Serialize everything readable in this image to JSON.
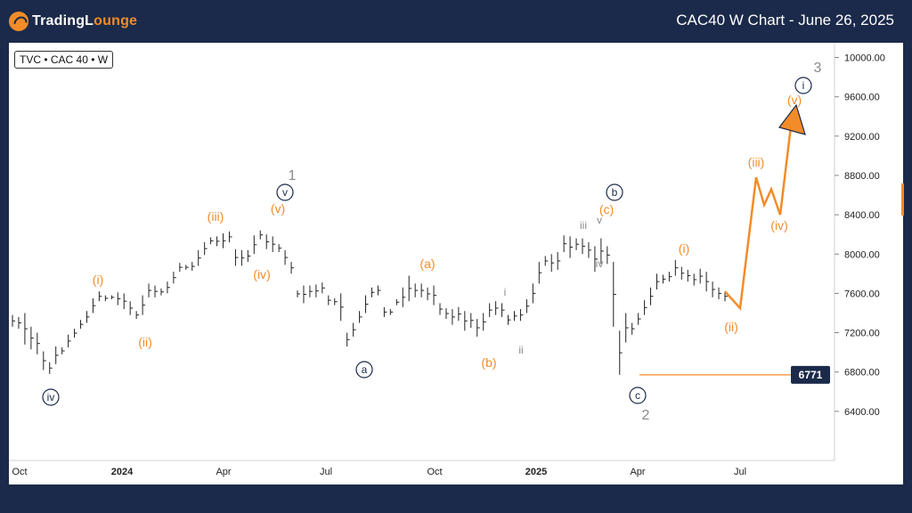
{
  "brand": {
    "name_part1": "TradingL",
    "name_part2": "ounge"
  },
  "header": {
    "title": "CAC40 W Chart - June 26, 2025"
  },
  "symbol_label": "TVC • CAC 40 • W",
  "colors": {
    "orange": "#f28c28",
    "navy": "#1b2a4a",
    "gray": "#8a8a8a",
    "bar": "#222222"
  },
  "chart_data": {
    "type": "bar",
    "title": "CAC40 W Chart - June 26, 2025",
    "ylim": [
      5900,
      10150
    ],
    "y_ticks": [
      "10000.00",
      "9600.00",
      "9200.00",
      "8800.00",
      "8400.00",
      "8000.00",
      "7600.00",
      "7200.00",
      "6800.00",
      "6400.00"
    ],
    "x_ticks": [
      "Oct",
      "2024",
      "Apr",
      "Jul",
      "Oct",
      "2025",
      "Apr",
      "Jul"
    ],
    "price_marker": {
      "label": "6771",
      "value": 6771
    },
    "price_bars_approx": [
      [
        7380,
        7260
      ],
      [
        7360,
        7240
      ],
      [
        7400,
        7080
      ],
      [
        7260,
        7030
      ],
      [
        7200,
        6980
      ],
      [
        7010,
        6820
      ],
      [
        6900,
        6780
      ],
      [
        7060,
        6880
      ],
      [
        7050,
        6980
      ],
      [
        7180,
        7050
      ],
      [
        7240,
        7150
      ],
      [
        7330,
        7240
      ],
      [
        7420,
        7300
      ],
      [
        7550,
        7400
      ],
      [
        7620,
        7520
      ],
      [
        7580,
        7520
      ],
      [
        7580,
        7540
      ],
      [
        7610,
        7480
      ],
      [
        7600,
        7440
      ],
      [
        7520,
        7380
      ],
      [
        7420,
        7340
      ],
      [
        7580,
        7380
      ],
      [
        7700,
        7560
      ],
      [
        7680,
        7560
      ],
      [
        7650,
        7580
      ],
      [
        7720,
        7600
      ],
      [
        7820,
        7700
      ],
      [
        7910,
        7820
      ],
      [
        7890,
        7840
      ],
      [
        7920,
        7830
      ],
      [
        8040,
        7880
      ],
      [
        8120,
        7990
      ],
      [
        8170,
        8100
      ],
      [
        8180,
        8080
      ],
      [
        8210,
        8060
      ],
      [
        8230,
        8120
      ],
      [
        8050,
        7880
      ],
      [
        8040,
        7880
      ],
      [
        8040,
        7920
      ],
      [
        8190,
        8000
      ],
      [
        8240,
        8150
      ],
      [
        8200,
        8050
      ],
      [
        8180,
        8020
      ],
      [
        8100,
        8020
      ],
      [
        8040,
        7890
      ],
      [
        7920,
        7800
      ],
      [
        7630,
        7560
      ],
      [
        7680,
        7500
      ],
      [
        7680,
        7560
      ],
      [
        7690,
        7560
      ],
      [
        7710,
        7600
      ],
      [
        7580,
        7480
      ],
      [
        7550,
        7480
      ],
      [
        7600,
        7320
      ],
      [
        7200,
        7060
      ],
      [
        7300,
        7160
      ],
      [
        7420,
        7300
      ],
      [
        7580,
        7400
      ],
      [
        7660,
        7560
      ],
      [
        7680,
        7580
      ],
      [
        7460,
        7360
      ],
      [
        7440,
        7380
      ],
      [
        7540,
        7480
      ],
      [
        7660,
        7460
      ],
      [
        7780,
        7520
      ],
      [
        7700,
        7560
      ],
      [
        7700,
        7560
      ],
      [
        7660,
        7530
      ],
      [
        7680,
        7480
      ],
      [
        7500,
        7380
      ],
      [
        7450,
        7340
      ],
      [
        7440,
        7280
      ],
      [
        7460,
        7320
      ],
      [
        7420,
        7220
      ],
      [
        7400,
        7250
      ],
      [
        7340,
        7160
      ],
      [
        7400,
        7220
      ],
      [
        7500,
        7360
      ],
      [
        7520,
        7380
      ],
      [
        7500,
        7360
      ],
      [
        7380,
        7280
      ],
      [
        7420,
        7320
      ],
      [
        7440,
        7320
      ],
      [
        7540,
        7400
      ],
      [
        7700,
        7500
      ],
      [
        7920,
        7700
      ],
      [
        7980,
        7880
      ],
      [
        8000,
        7820
      ],
      [
        8020,
        7840
      ],
      [
        8190,
        8020
      ],
      [
        8180,
        7960
      ],
      [
        8160,
        8040
      ],
      [
        8160,
        8000
      ],
      [
        8120,
        7960
      ],
      [
        8080,
        7820
      ],
      [
        8160,
        7900
      ],
      [
        8080,
        7900
      ],
      [
        7920,
        7260
      ],
      [
        7220,
        6771
      ],
      [
        7400,
        7100
      ],
      [
        7300,
        7180
      ],
      [
        7400,
        7280
      ],
      [
        7530,
        7380
      ],
      [
        7660,
        7480
      ],
      [
        7800,
        7640
      ],
      [
        7790,
        7700
      ],
      [
        7820,
        7720
      ],
      [
        7940,
        7780
      ],
      [
        7870,
        7740
      ],
      [
        7840,
        7720
      ],
      [
        7800,
        7680
      ],
      [
        7850,
        7700
      ],
      [
        7820,
        7620
      ],
      [
        7720,
        7560
      ],
      [
        7660,
        7540
      ],
      [
        7620,
        7520
      ]
    ],
    "projection": [
      {
        "label": "(ii)",
        "value": 7450
      },
      {
        "label": "(iii)",
        "value": 8780
      },
      {
        "label": "(iv)",
        "value": 8400
      },
      {
        "label": "(v)",
        "value": 9400
      }
    ],
    "wave_labels": [
      {
        "text": "ⓘⓥ",
        "kind": "navy"
      },
      {
        "text": "1"
      },
      {
        "text": "2"
      },
      {
        "text": "3"
      }
    ],
    "labels": {
      "l_iv_c": "iv",
      "l_i_o": "i",
      "l_ii_o": "ii",
      "l_iii_o": "iii",
      "l_iv_o": "iv",
      "l_v_o": "v",
      "l_v_c": "v",
      "l_1": "1",
      "l_a_c": "a",
      "l_a_o": "a",
      "l_b_o": "b",
      "l_i_g": "i",
      "l_ii_g": "ii",
      "l_iii_g": "iii",
      "l_v_g": "v",
      "l_iv_g": "iv",
      "l_c_o": "c",
      "l_b_c": "b",
      "l_c_c": "c",
      "l_2": "2",
      "l_i_o2": "i",
      "l_ii_o2": "ii",
      "l_iii_o2": "iii",
      "l_iv_o2": "iv",
      "l_v_o2": "v",
      "l_i_c": "i",
      "l_3": "3"
    }
  }
}
